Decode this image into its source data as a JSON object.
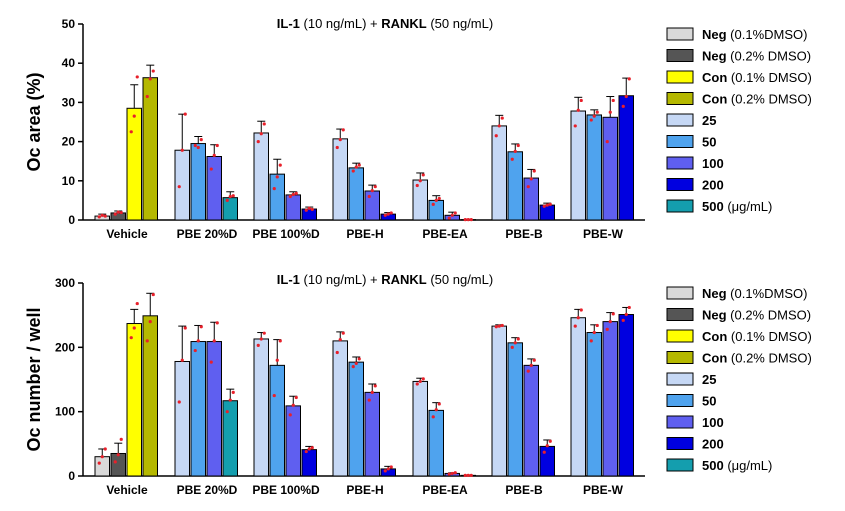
{
  "chart_data": [
    {
      "type": "bar",
      "title_parts": [
        {
          "text": "IL-1",
          "bold": true
        },
        {
          "text": " (10 ng/mL) + ",
          "bold": false
        },
        {
          "text": "RANKL",
          "bold": true
        },
        {
          "text": " (50 ng/mL)",
          "bold": false
        }
      ],
      "ylabel": "Oc area (%)",
      "ylim": [
        0,
        50
      ],
      "yticks": [
        0,
        10,
        20,
        30,
        40,
        50
      ],
      "categories": [
        "Vehicle",
        "PBE 20%D",
        "PBE 100%D",
        "PBE-H",
        "PBE-EA",
        "PBE-B",
        "PBE-W"
      ],
      "groups": [
        {
          "category": "Vehicle",
          "bars": [
            {
              "series": "Neg (0.1%DMSO)",
              "value": 1.0,
              "err": 0.5,
              "points": [
                0.8,
                1.2,
                1.0
              ]
            },
            {
              "series": "Neg (0.2% DMSO)",
              "value": 1.8,
              "err": 0.5,
              "points": [
                1.5,
                2.0,
                1.9
              ]
            },
            {
              "series": "Con (0.1% DMSO)",
              "value": 28.5,
              "err": 6.0,
              "points": [
                22.5,
                26.5,
                36.5
              ]
            },
            {
              "series": "Con (0.2% DMSO)",
              "value": 36.3,
              "err": 3.2,
              "points": [
                31.5,
                36.0,
                38.0
              ]
            }
          ]
        },
        {
          "category": "PBE 20%D",
          "bars": [
            {
              "series": "25",
              "value": 17.8,
              "err": 9.2,
              "points": [
                8.5,
                17.8,
                27.0
              ]
            },
            {
              "series": "50",
              "value": 19.5,
              "err": 1.8,
              "points": [
                19.0,
                18.5,
                20.5
              ]
            },
            {
              "series": "100",
              "value": 16.2,
              "err": 3.0,
              "points": [
                13.0,
                16.5,
                19.0
              ]
            },
            {
              "series": "500",
              "value": 5.7,
              "err": 1.5,
              "points": [
                5.0,
                6.0,
                6.2
              ]
            }
          ]
        },
        {
          "category": "PBE 100%D",
          "bars": [
            {
              "series": "25",
              "value": 22.2,
              "err": 3.0,
              "points": [
                20.0,
                22.0,
                24.5
              ]
            },
            {
              "series": "50",
              "value": 11.7,
              "err": 3.8,
              "points": [
                8.0,
                11.0,
                14.0
              ]
            },
            {
              "series": "100",
              "value": 6.4,
              "err": 0.8,
              "points": [
                6.0,
                6.5,
                6.8
              ]
            },
            {
              "series": "200",
              "value": 2.8,
              "err": 0.5,
              "points": [
                2.5,
                3.0,
                2.7
              ]
            }
          ]
        },
        {
          "category": "PBE-H",
          "bars": [
            {
              "series": "25",
              "value": 20.7,
              "err": 2.5,
              "points": [
                18.5,
                20.5,
                23.0
              ]
            },
            {
              "series": "50",
              "value": 13.3,
              "err": 1.2,
              "points": [
                12.5,
                13.5,
                14.0
              ]
            },
            {
              "series": "100",
              "value": 7.4,
              "err": 1.5,
              "points": [
                6.0,
                7.5,
                8.5
              ]
            },
            {
              "series": "200",
              "value": 1.5,
              "err": 0.4,
              "points": [
                1.2,
                1.5,
                1.8
              ]
            }
          ]
        },
        {
          "category": "PBE-EA",
          "bars": [
            {
              "series": "25",
              "value": 10.2,
              "err": 1.8,
              "points": [
                8.8,
                10.0,
                11.5
              ]
            },
            {
              "series": "50",
              "value": 5.0,
              "err": 1.2,
              "points": [
                4.0,
                5.0,
                5.5
              ]
            },
            {
              "series": "100",
              "value": 1.2,
              "err": 0.8,
              "points": [
                0.5,
                1.2,
                1.8
              ]
            },
            {
              "series": "200",
              "value": 0.1,
              "err": 0.1,
              "points": [
                0.1,
                0.1,
                0.1
              ]
            }
          ]
        },
        {
          "category": "PBE-B",
          "bars": [
            {
              "series": "25",
              "value": 24.0,
              "err": 2.7,
              "points": [
                21.5,
                24.0,
                26.0
              ]
            },
            {
              "series": "50",
              "value": 17.4,
              "err": 2.0,
              "points": [
                15.5,
                17.5,
                19.0
              ]
            },
            {
              "series": "100",
              "value": 10.7,
              "err": 2.2,
              "points": [
                8.5,
                10.5,
                12.5
              ]
            },
            {
              "series": "200",
              "value": 3.8,
              "err": 0.5,
              "points": [
                3.5,
                3.8,
                4.0
              ]
            }
          ]
        },
        {
          "category": "PBE-W",
          "bars": [
            {
              "series": "25",
              "value": 27.8,
              "err": 3.5,
              "points": [
                24.0,
                28.0,
                30.5
              ]
            },
            {
              "series": "50",
              "value": 26.8,
              "err": 1.3,
              "points": [
                25.5,
                26.5,
                27.5
              ]
            },
            {
              "series": "100",
              "value": 26.2,
              "err": 5.3,
              "points": [
                20.0,
                27.5,
                30.5
              ]
            },
            {
              "series": "200",
              "value": 31.7,
              "err": 4.5,
              "points": [
                29.0,
                31.5,
                36.0
              ]
            }
          ]
        }
      ]
    },
    {
      "type": "bar",
      "title_parts": [
        {
          "text": "IL-1",
          "bold": true
        },
        {
          "text": " (10 ng/mL) + ",
          "bold": false
        },
        {
          "text": "RANKL",
          "bold": true
        },
        {
          "text": " (50 ng/mL)",
          "bold": false
        }
      ],
      "ylabel": "Oc number / well",
      "ylim": [
        0,
        300
      ],
      "yticks": [
        0,
        100,
        200,
        300
      ],
      "categories": [
        "Vehicle",
        "PBE 20%D",
        "PBE 100%D",
        "PBE-H",
        "PBE-EA",
        "PBE-B",
        "PBE-W"
      ],
      "groups": [
        {
          "category": "Vehicle",
          "bars": [
            {
              "series": "Neg (0.1%DMSO)",
              "value": 30,
              "err": 12,
              "points": [
                20,
                30,
                42
              ]
            },
            {
              "series": "Neg (0.2% DMSO)",
              "value": 35,
              "err": 16,
              "points": [
                22,
                33,
                57
              ]
            },
            {
              "series": "Con (0.1% DMSO)",
              "value": 237,
              "err": 22,
              "points": [
                215,
                230,
                268
              ]
            },
            {
              "series": "Con (0.2% DMSO)",
              "value": 249,
              "err": 35,
              "points": [
                210,
                240,
                282
              ]
            }
          ]
        },
        {
          "category": "PBE 20%D",
          "bars": [
            {
              "series": "25",
              "value": 178,
              "err": 55,
              "points": [
                115,
                180,
                230
              ]
            },
            {
              "series": "50",
              "value": 209,
              "err": 25,
              "points": [
                195,
                210,
                232
              ]
            },
            {
              "series": "100",
              "value": 209,
              "err": 30,
              "points": [
                177,
                210,
                238
              ]
            },
            {
              "series": "500",
              "value": 117,
              "err": 18,
              "points": [
                100,
                118,
                130
              ]
            }
          ]
        },
        {
          "category": "PBE 100%D",
          "bars": [
            {
              "series": "25",
              "value": 213,
              "err": 10,
              "points": [
                203,
                213,
                222
              ]
            },
            {
              "series": "50",
              "value": 172,
              "err": 40,
              "points": [
                125,
                180,
                210
              ]
            },
            {
              "series": "100",
              "value": 109,
              "err": 15,
              "points": [
                95,
                110,
                122
              ]
            },
            {
              "series": "200",
              "value": 41,
              "err": 5,
              "points": [
                38,
                42,
                44
              ]
            }
          ]
        },
        {
          "category": "PBE-H",
          "bars": [
            {
              "series": "25",
              "value": 210,
              "err": 14,
              "points": [
                192,
                212,
                222
              ]
            },
            {
              "series": "50",
              "value": 177,
              "err": 8,
              "points": [
                170,
                175,
                182
              ]
            },
            {
              "series": "100",
              "value": 130,
              "err": 13,
              "points": [
                118,
                130,
                140
              ]
            },
            {
              "series": "200",
              "value": 11,
              "err": 4,
              "points": [
                8,
                11,
                14
              ]
            }
          ]
        },
        {
          "category": "PBE-EA",
          "bars": [
            {
              "series": "25",
              "value": 147,
              "err": 5,
              "points": [
                143,
                147,
                151
              ]
            },
            {
              "series": "50",
              "value": 102,
              "err": 12,
              "points": [
                92,
                103,
                112
              ]
            },
            {
              "series": "100",
              "value": 4,
              "err": 1,
              "points": [
                3,
                4,
                5
              ]
            },
            {
              "series": "200",
              "value": 1,
              "err": 0.5,
              "points": [
                1,
                1,
                1
              ]
            }
          ]
        },
        {
          "category": "PBE-B",
          "bars": [
            {
              "series": "25",
              "value": 233,
              "err": 2,
              "points": [
                232,
                233,
                234
              ]
            },
            {
              "series": "50",
              "value": 207,
              "err": 8,
              "points": [
                200,
                207,
                213
              ]
            },
            {
              "series": "100",
              "value": 172,
              "err": 10,
              "points": [
                163,
                172,
                180
              ]
            },
            {
              "series": "200",
              "value": 46,
              "err": 10,
              "points": [
                37,
                47,
                54
              ]
            }
          ]
        },
        {
          "category": "PBE-W",
          "bars": [
            {
              "series": "25",
              "value": 246,
              "err": 13,
              "points": [
                233,
                246,
                258
              ]
            },
            {
              "series": "50",
              "value": 223,
              "err": 12,
              "points": [
                210,
                223,
                234
              ]
            },
            {
              "series": "100",
              "value": 240,
              "err": 14,
              "points": [
                228,
                240,
                252
              ]
            },
            {
              "series": "200",
              "value": 251,
              "err": 11,
              "points": [
                242,
                251,
                262
              ]
            }
          ]
        }
      ]
    }
  ],
  "series_styles": [
    {
      "name": "Neg (0.1%DMSO)",
      "color": "#d9d9d9"
    },
    {
      "name": "Neg (0.2% DMSO)",
      "color": "#555555"
    },
    {
      "name": "Con (0.1% DMSO)",
      "color": "#ffff00"
    },
    {
      "name": "Con (0.2% DMSO)",
      "color": "#b5b800"
    },
    {
      "name": "25",
      "color": "#c6d8f5"
    },
    {
      "name": "50",
      "color": "#4fa3ee"
    },
    {
      "name": "100",
      "color": "#5f5ff0"
    },
    {
      "name": "200",
      "color": "#0000e0"
    },
    {
      "name": "500",
      "color": "#149eae"
    }
  ],
  "legend": [
    {
      "bold": "Neg",
      "rest": " (0.1%DMSO)",
      "color": "#d9d9d9"
    },
    {
      "bold": "Neg",
      "rest": " (0.2% DMSO)",
      "color": "#555555"
    },
    {
      "bold": "Con",
      "rest": " (0.1% DMSO)",
      "color": "#ffff00"
    },
    {
      "bold": "Con",
      "rest": " (0.2% DMSO)",
      "color": "#b5b800"
    },
    {
      "bold": "25",
      "rest": "",
      "color": "#c6d8f5"
    },
    {
      "bold": "50",
      "rest": "",
      "color": "#4fa3ee"
    },
    {
      "bold": "100",
      "rest": "",
      "color": "#5f5ff0"
    },
    {
      "bold": "200",
      "rest": "",
      "color": "#0000e0"
    },
    {
      "bold": "500",
      "rest": " (μg/mL)",
      "color": "#149eae"
    }
  ],
  "point_color": "#e8202a"
}
